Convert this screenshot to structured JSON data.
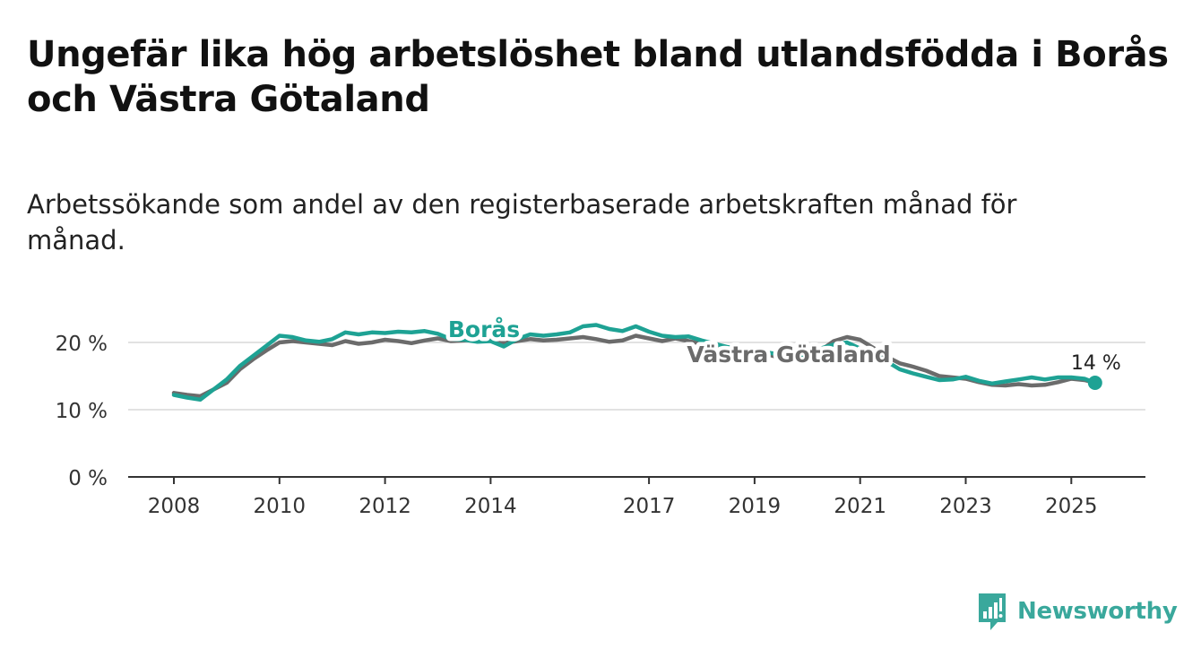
{
  "title": "Ungefär lika hög arbetslöshet bland utlandsfödda i Borås och Västra Götaland",
  "subtitle": "Arbetssökande som andel av den registerbaserade arbetskraften månad för månad.",
  "brand": {
    "name": "Newsworthy",
    "icon": "newsworthy-logo-icon",
    "color": "#3aa89c"
  },
  "chart_data": {
    "type": "line",
    "title": "Ungefär lika hög arbetslöshet bland utlandsfödda i Borås och Västra Götaland",
    "subtitle": "Arbetssökande som andel av den registerbaserade arbetskraften månad för månad.",
    "xlabel": "",
    "ylabel": "",
    "xlim": [
      2008,
      2025.6
    ],
    "ylim": [
      0,
      22
    ],
    "grid": true,
    "y_ticks": [
      {
        "value": 0,
        "label": "0 %"
      },
      {
        "value": 10,
        "label": "10 %"
      },
      {
        "value": 20,
        "label": "20 %"
      }
    ],
    "x_ticks": [
      {
        "value": 2008,
        "label": "2008"
      },
      {
        "value": 2010,
        "label": "2010"
      },
      {
        "value": 2012,
        "label": "2012"
      },
      {
        "value": 2014,
        "label": "2014"
      },
      {
        "value": 2017,
        "label": "2017"
      },
      {
        "value": 2019,
        "label": "2019"
      },
      {
        "value": 2021,
        "label": "2021"
      },
      {
        "value": 2023,
        "label": "2023"
      },
      {
        "value": 2025,
        "label": "2025"
      }
    ],
    "series": [
      {
        "name": "Västra Götaland",
        "color": "#6b6b6b",
        "points": [
          [
            2008.0,
            12.5
          ],
          [
            2008.25,
            12.2
          ],
          [
            2008.5,
            12.0
          ],
          [
            2008.75,
            13.0
          ],
          [
            2009.0,
            14.0
          ],
          [
            2009.25,
            16.0
          ],
          [
            2009.5,
            17.5
          ],
          [
            2009.75,
            18.8
          ],
          [
            2010.0,
            20.0
          ],
          [
            2010.25,
            20.2
          ],
          [
            2010.5,
            20.0
          ],
          [
            2010.75,
            19.8
          ],
          [
            2011.0,
            19.6
          ],
          [
            2011.25,
            20.2
          ],
          [
            2011.5,
            19.8
          ],
          [
            2011.75,
            20.0
          ],
          [
            2012.0,
            20.4
          ],
          [
            2012.25,
            20.2
          ],
          [
            2012.5,
            19.9
          ],
          [
            2012.75,
            20.3
          ],
          [
            2013.0,
            20.6
          ],
          [
            2013.25,
            20.2
          ],
          [
            2013.5,
            20.3
          ],
          [
            2013.75,
            20.5
          ],
          [
            2014.0,
            20.3
          ],
          [
            2014.25,
            19.9
          ],
          [
            2014.5,
            20.2
          ],
          [
            2014.75,
            20.5
          ],
          [
            2015.0,
            20.3
          ],
          [
            2015.25,
            20.4
          ],
          [
            2015.5,
            20.6
          ],
          [
            2015.75,
            20.8
          ],
          [
            2016.0,
            20.5
          ],
          [
            2016.25,
            20.1
          ],
          [
            2016.5,
            20.3
          ],
          [
            2016.75,
            21.0
          ],
          [
            2017.0,
            20.6
          ],
          [
            2017.25,
            20.2
          ],
          [
            2017.5,
            20.6
          ],
          [
            2017.75,
            20.2
          ],
          [
            2018.0,
            19.8
          ],
          [
            2018.25,
            19.5
          ],
          [
            2018.5,
            19.0
          ],
          [
            2018.75,
            18.7
          ],
          [
            2019.0,
            18.5
          ],
          [
            2019.25,
            18.2
          ],
          [
            2019.5,
            17.7
          ],
          [
            2019.75,
            17.6
          ],
          [
            2020.0,
            17.8
          ],
          [
            2020.25,
            18.8
          ],
          [
            2020.5,
            20.2
          ],
          [
            2020.75,
            20.8
          ],
          [
            2021.0,
            20.4
          ],
          [
            2021.25,
            19.2
          ],
          [
            2021.5,
            17.9
          ],
          [
            2021.75,
            16.9
          ],
          [
            2022.0,
            16.4
          ],
          [
            2022.25,
            15.8
          ],
          [
            2022.5,
            15.0
          ],
          [
            2022.75,
            14.8
          ],
          [
            2023.0,
            14.6
          ],
          [
            2023.25,
            14.1
          ],
          [
            2023.5,
            13.7
          ],
          [
            2023.75,
            13.6
          ],
          [
            2024.0,
            13.8
          ],
          [
            2024.25,
            13.6
          ],
          [
            2024.5,
            13.7
          ],
          [
            2024.75,
            14.1
          ],
          [
            2025.0,
            14.6
          ],
          [
            2025.25,
            14.4
          ],
          [
            2025.45,
            14.0
          ]
        ]
      },
      {
        "name": "Borås",
        "color": "#1ea294",
        "points": [
          [
            2008.0,
            12.2
          ],
          [
            2008.25,
            11.8
          ],
          [
            2008.5,
            11.5
          ],
          [
            2008.75,
            13.0
          ],
          [
            2009.0,
            14.5
          ],
          [
            2009.25,
            16.5
          ],
          [
            2009.5,
            18.0
          ],
          [
            2009.75,
            19.5
          ],
          [
            2010.0,
            21.0
          ],
          [
            2010.25,
            20.8
          ],
          [
            2010.5,
            20.3
          ],
          [
            2010.75,
            20.1
          ],
          [
            2011.0,
            20.5
          ],
          [
            2011.25,
            21.5
          ],
          [
            2011.5,
            21.2
          ],
          [
            2011.75,
            21.5
          ],
          [
            2012.0,
            21.4
          ],
          [
            2012.25,
            21.6
          ],
          [
            2012.5,
            21.5
          ],
          [
            2012.75,
            21.7
          ],
          [
            2013.0,
            21.3
          ],
          [
            2013.25,
            20.5
          ],
          [
            2013.5,
            20.4
          ],
          [
            2013.75,
            20.1
          ],
          [
            2014.0,
            20.2
          ],
          [
            2014.25,
            19.4
          ],
          [
            2014.5,
            20.5
          ],
          [
            2014.75,
            21.2
          ],
          [
            2015.0,
            21.0
          ],
          [
            2015.25,
            21.2
          ],
          [
            2015.5,
            21.5
          ],
          [
            2015.75,
            22.4
          ],
          [
            2016.0,
            22.6
          ],
          [
            2016.25,
            22.0
          ],
          [
            2016.5,
            21.7
          ],
          [
            2016.75,
            22.4
          ],
          [
            2017.0,
            21.6
          ],
          [
            2017.25,
            21.0
          ],
          [
            2017.5,
            20.8
          ],
          [
            2017.75,
            20.9
          ],
          [
            2018.0,
            20.3
          ],
          [
            2018.25,
            19.8
          ],
          [
            2018.5,
            19.3
          ],
          [
            2018.75,
            19.1
          ],
          [
            2019.0,
            18.7
          ],
          [
            2019.25,
            18.5
          ],
          [
            2019.5,
            18.2
          ],
          [
            2019.75,
            18.0
          ],
          [
            2020.0,
            18.3
          ],
          [
            2020.25,
            19.1
          ],
          [
            2020.5,
            19.7
          ],
          [
            2020.75,
            20.0
          ],
          [
            2021.0,
            19.1
          ],
          [
            2021.25,
            18.3
          ],
          [
            2021.5,
            17.2
          ],
          [
            2021.75,
            16.0
          ],
          [
            2022.0,
            15.4
          ],
          [
            2022.25,
            14.9
          ],
          [
            2022.5,
            14.4
          ],
          [
            2022.75,
            14.5
          ],
          [
            2023.0,
            14.9
          ],
          [
            2023.25,
            14.3
          ],
          [
            2023.5,
            13.9
          ],
          [
            2023.75,
            14.2
          ],
          [
            2024.0,
            14.5
          ],
          [
            2024.25,
            14.8
          ],
          [
            2024.5,
            14.5
          ],
          [
            2024.75,
            14.8
          ],
          [
            2025.0,
            14.8
          ],
          [
            2025.25,
            14.6
          ],
          [
            2025.45,
            14.0
          ]
        ]
      }
    ],
    "labels": {
      "boras": "Borås",
      "vg": "Västra Götaland",
      "end_value": "14 %"
    }
  }
}
